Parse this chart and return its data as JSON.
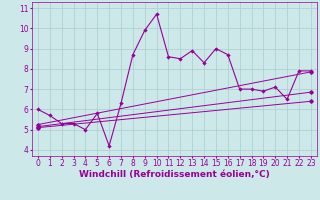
{
  "xlabel": "Windchill (Refroidissement éolien,°C)",
  "bg_color": "#cce8e8",
  "line_color": "#990099",
  "xlim": [
    -0.5,
    23.5
  ],
  "ylim": [
    3.7,
    11.3
  ],
  "yticks": [
    4,
    5,
    6,
    7,
    8,
    9,
    10,
    11
  ],
  "xticks": [
    0,
    1,
    2,
    3,
    4,
    5,
    6,
    7,
    8,
    9,
    10,
    11,
    12,
    13,
    14,
    15,
    16,
    17,
    18,
    19,
    20,
    21,
    22,
    23
  ],
  "series1_x": [
    0,
    1,
    2,
    3,
    4,
    5,
    6,
    7,
    8,
    9,
    10,
    11,
    12,
    13,
    14,
    15,
    16,
    17,
    18,
    19,
    20,
    21,
    22,
    23
  ],
  "series1_y": [
    6.0,
    5.7,
    5.3,
    5.3,
    5.0,
    5.8,
    4.2,
    6.3,
    8.7,
    9.9,
    10.7,
    8.6,
    8.5,
    8.9,
    8.3,
    9.0,
    8.7,
    7.0,
    7.0,
    6.9,
    7.1,
    6.5,
    7.9,
    7.9
  ],
  "series2_x": [
    0,
    23
  ],
  "series2_y": [
    5.1,
    6.4
  ],
  "series3_x": [
    0,
    23
  ],
  "series3_y": [
    5.15,
    6.85
  ],
  "series4_x": [
    0,
    23
  ],
  "series4_y": [
    5.25,
    7.85
  ],
  "grid_color": "#aacece",
  "tick_fontsize": 5.5,
  "label_fontsize": 6.5
}
